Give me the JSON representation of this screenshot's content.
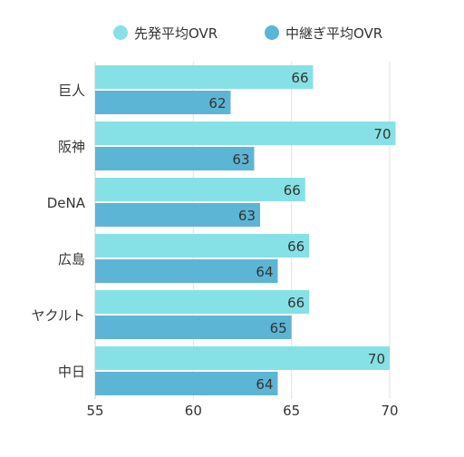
{
  "chart_data": {
    "type": "bar",
    "orientation": "horizontal",
    "categories": [
      "巨人",
      "阪神",
      "DeNA",
      "広島",
      "ヤクルト",
      "中日"
    ],
    "series": [
      {
        "name": "先発平均OVR",
        "color": "#86E1E6",
        "values": [
          66,
          70,
          66,
          66,
          66,
          70
        ],
        "bar_ends": [
          66.1,
          70.3,
          65.7,
          65.9,
          65.9,
          70.0
        ]
      },
      {
        "name": "中継ぎ平均OVR",
        "color": "#5DB5D5",
        "values": [
          62,
          63,
          63,
          64,
          65,
          64
        ],
        "bar_ends": [
          61.9,
          63.1,
          63.4,
          64.3,
          65.0,
          64.3
        ]
      }
    ],
    "xlim": [
      55,
      70
    ],
    "xticks": [
      55,
      60,
      65,
      70
    ],
    "grid": true,
    "legend_position": "top",
    "title": "",
    "xlabel": "",
    "ylabel": ""
  }
}
